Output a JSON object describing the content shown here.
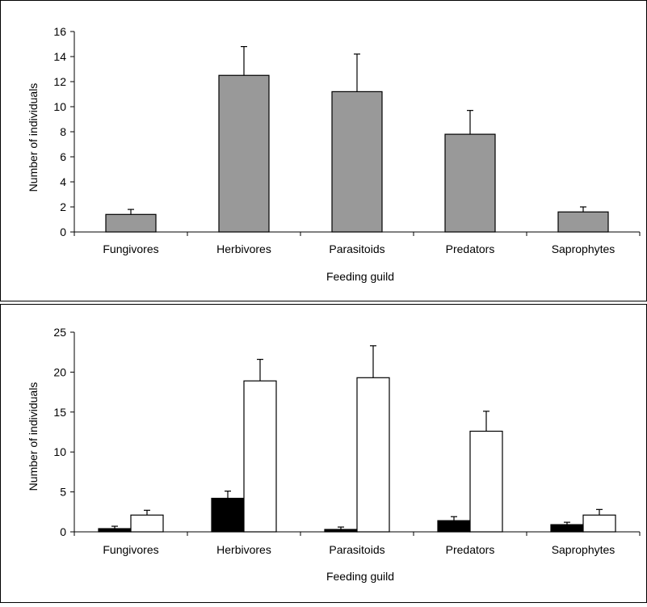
{
  "colors": {
    "gray_bar": "#999999",
    "black_bar": "#000000",
    "white_bar": "#ffffff",
    "axis": "#000000"
  },
  "chart_data": [
    {
      "type": "bar",
      "categories": [
        "Fungivores",
        "Herbivores",
        "Parasitoids",
        "Predators",
        "Saprophytes"
      ],
      "series": [
        {
          "color": "#999999",
          "values": [
            1.4,
            12.5,
            11.2,
            7.8,
            1.6
          ],
          "errors": [
            0.4,
            2.3,
            3.0,
            1.9,
            0.4
          ]
        }
      ],
      "xlabel": "Feeding guild",
      "ylabel": "Number  of individuals",
      "ylim": [
        0,
        16
      ],
      "yticks": [
        0,
        2,
        4,
        6,
        8,
        10,
        12,
        14,
        16
      ],
      "grid": false
    },
    {
      "type": "bar",
      "categories": [
        "Fungivores",
        "Herbivores",
        "Parasitoids",
        "Predators",
        "Saprophytes"
      ],
      "series": [
        {
          "color": "#000000",
          "values": [
            0.4,
            4.2,
            0.3,
            1.4,
            0.9
          ],
          "errors": [
            0.3,
            0.9,
            0.3,
            0.5,
            0.3
          ]
        },
        {
          "color": "#ffffff",
          "values": [
            2.1,
            18.9,
            19.3,
            12.6,
            2.1
          ],
          "errors": [
            0.6,
            2.7,
            4.0,
            2.5,
            0.7
          ]
        }
      ],
      "xlabel": "Feeding guild",
      "ylabel": "Number  of individuals",
      "ylim": [
        0,
        25
      ],
      "yticks": [
        0,
        5,
        10,
        15,
        20,
        25
      ],
      "grid": false
    }
  ]
}
